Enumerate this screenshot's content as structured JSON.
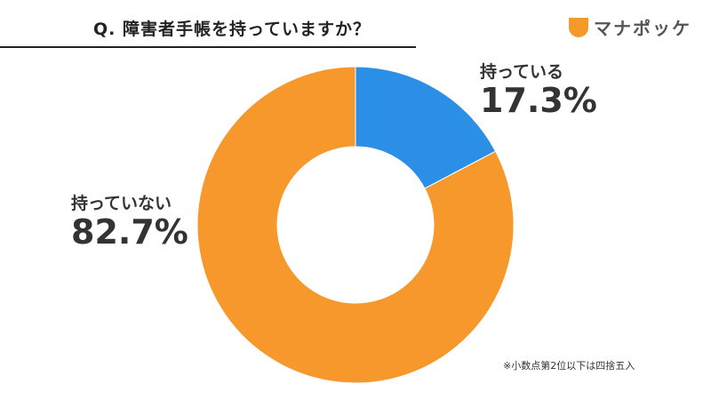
{
  "title": "Q. 障害者手帳を持っていますか？",
  "logo": {
    "text": "マナポッケ",
    "icon": "manapokke-logo-icon"
  },
  "footnote": "※小数点第2位以下は四捨五入",
  "chart_data": {
    "type": "pie",
    "donut": true,
    "title": "Q. 障害者手帳を持っていますか？",
    "categories": [
      "持っている",
      "持っていない"
    ],
    "values": [
      17.3,
      82.7
    ],
    "value_labels": [
      "17.3%",
      "82.7%"
    ],
    "colors": [
      "#2b8fe5",
      "#f7982c"
    ]
  }
}
